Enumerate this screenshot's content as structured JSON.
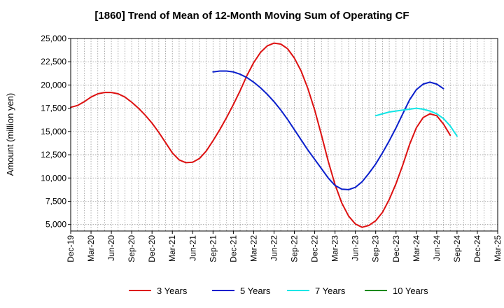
{
  "chart_data": {
    "type": "line",
    "title": "[1860]  Trend of Mean of 12-Month Moving Sum of Operating CF",
    "xlabel": "",
    "ylabel": "Amount (million yen)",
    "ylim": [
      4300,
      25000
    ],
    "y_ticks": [
      5000,
      7500,
      10000,
      12500,
      15000,
      17500,
      20000,
      22500,
      25000
    ],
    "y_tick_labels": [
      "5,000",
      "7,500",
      "10,000",
      "12,500",
      "15,000",
      "17,500",
      "20,000",
      "22,500",
      "25,000"
    ],
    "x_start": "2019-12",
    "x_months": 64,
    "x_ticks": [
      "Dec-19",
      "Mar-20",
      "Jun-20",
      "Sep-20",
      "Dec-20",
      "Mar-21",
      "Jun-21",
      "Sep-21",
      "Dec-21",
      "Mar-22",
      "Jun-22",
      "Sep-22",
      "Dec-22",
      "Mar-23",
      "Jun-23",
      "Sep-23",
      "Dec-23",
      "Mar-24",
      "Jun-24",
      "Sep-24",
      "Dec-24",
      "Mar-25"
    ],
    "grid": true,
    "legend_position": "bottom",
    "series": [
      {
        "name": "3 Years",
        "color": "#dd1111",
        "start_index": 0,
        "values": [
          17600,
          17800,
          18200,
          18700,
          19050,
          19200,
          19200,
          19050,
          18700,
          18150,
          17500,
          16750,
          15900,
          14900,
          13800,
          12700,
          11950,
          11650,
          11700,
          12100,
          12900,
          14000,
          15200,
          16500,
          17900,
          19400,
          21000,
          22400,
          23500,
          24200,
          24500,
          24400,
          23900,
          22900,
          21500,
          19600,
          17300,
          14600,
          11800,
          9300,
          7300,
          5900,
          5050,
          4700,
          4900,
          5400,
          6300,
          7700,
          9400,
          11400,
          13600,
          15400,
          16500,
          16900,
          16700,
          15800,
          14600
        ]
      },
      {
        "name": "5 Years",
        "color": "#0a1fcc",
        "start_index": 21,
        "values": [
          21400,
          21500,
          21500,
          21400,
          21150,
          20800,
          20300,
          19700,
          19000,
          18200,
          17300,
          16300,
          15200,
          14100,
          13000,
          12000,
          11000,
          10000,
          9200,
          8800,
          8750,
          9000,
          9600,
          10500,
          11500,
          12700,
          14000,
          15400,
          16900,
          18400,
          19500,
          20100,
          20300,
          20100,
          19600
        ]
      },
      {
        "name": "7 Years",
        "color": "#11e6e6",
        "start_index": 45,
        "values": [
          16700,
          16900,
          17100,
          17200,
          17300,
          17400,
          17500,
          17400,
          17200,
          16900,
          16400,
          15600,
          14500
        ]
      },
      {
        "name": "10 Years",
        "color": "#1a8a1a",
        "start_index": 0,
        "values": []
      }
    ]
  }
}
